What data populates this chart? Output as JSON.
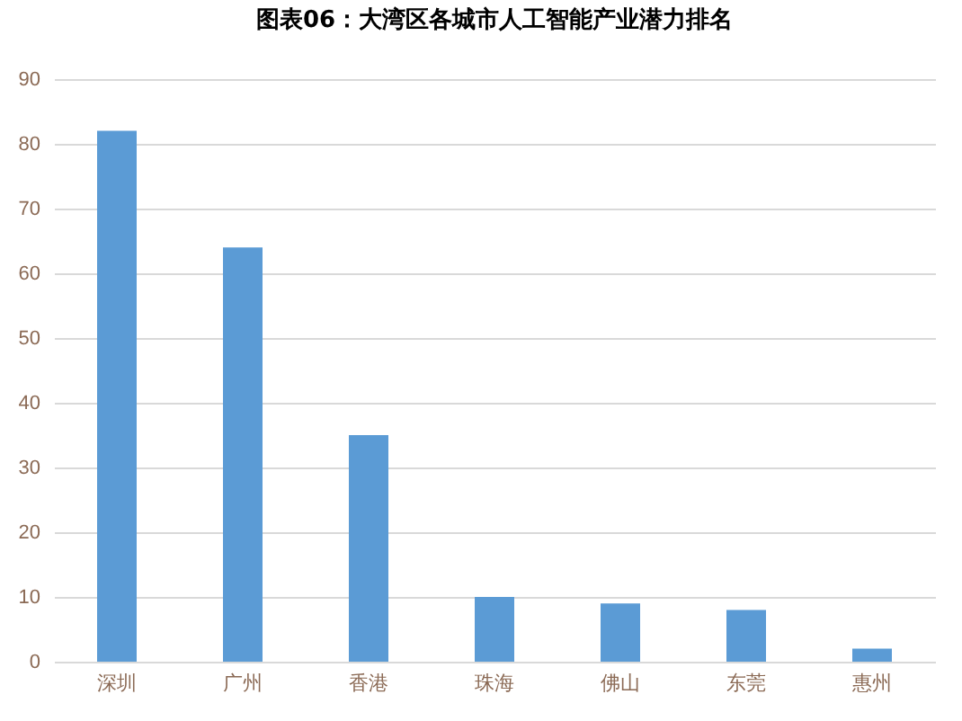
{
  "chart_data": {
    "type": "bar",
    "title": "图表06：大湾区各城市人工智能产业潜力排名",
    "categories": [
      "深圳",
      "广州",
      "香港",
      "珠海",
      "佛山",
      "东莞",
      "惠州"
    ],
    "values": [
      82,
      64,
      35,
      10,
      9,
      8,
      2
    ],
    "color": "#5b9bd5",
    "ylim": [
      0,
      90
    ],
    "yticks": [
      0,
      10,
      20,
      30,
      40,
      50,
      60,
      70,
      80,
      90
    ],
    "grid": "y"
  }
}
